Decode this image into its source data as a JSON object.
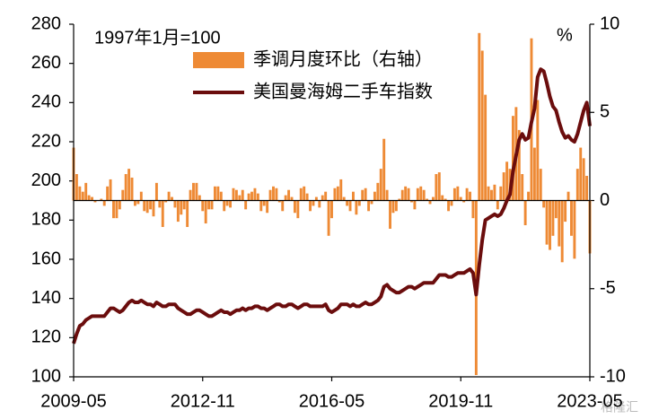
{
  "chart_data": {
    "type": "combo",
    "annotation": "1997年1月=100",
    "y2_unit": "%",
    "watermark": "格隆汇",
    "x": [
      "2009-05",
      "2009-06",
      "2009-07",
      "2009-08",
      "2009-09",
      "2009-10",
      "2009-11",
      "2009-12",
      "2010-01",
      "2010-02",
      "2010-03",
      "2010-04",
      "2010-05",
      "2010-06",
      "2010-07",
      "2010-08",
      "2010-09",
      "2010-10",
      "2010-11",
      "2010-12",
      "2011-01",
      "2011-02",
      "2011-03",
      "2011-04",
      "2011-05",
      "2011-06",
      "2011-07",
      "2011-08",
      "2011-09",
      "2011-10",
      "2011-11",
      "2011-12",
      "2012-01",
      "2012-02",
      "2012-03",
      "2012-04",
      "2012-05",
      "2012-06",
      "2012-07",
      "2012-08",
      "2012-09",
      "2012-10",
      "2012-11",
      "2012-12",
      "2013-01",
      "2013-02",
      "2013-03",
      "2013-04",
      "2013-05",
      "2013-06",
      "2013-07",
      "2013-08",
      "2013-09",
      "2013-10",
      "2013-11",
      "2013-12",
      "2014-01",
      "2014-02",
      "2014-03",
      "2014-04",
      "2014-05",
      "2014-06",
      "2014-07",
      "2014-08",
      "2014-09",
      "2014-10",
      "2014-11",
      "2014-12",
      "2015-01",
      "2015-02",
      "2015-03",
      "2015-04",
      "2015-05",
      "2015-06",
      "2015-07",
      "2015-08",
      "2015-09",
      "2015-10",
      "2015-11",
      "2015-12",
      "2016-01",
      "2016-02",
      "2016-03",
      "2016-04",
      "2016-05",
      "2016-06",
      "2016-07",
      "2016-08",
      "2016-09",
      "2016-10",
      "2016-11",
      "2016-12",
      "2017-01",
      "2017-02",
      "2017-03",
      "2017-04",
      "2017-05",
      "2017-06",
      "2017-07",
      "2017-08",
      "2017-09",
      "2017-10",
      "2017-11",
      "2017-12",
      "2018-01",
      "2018-02",
      "2018-03",
      "2018-04",
      "2018-05",
      "2018-06",
      "2018-07",
      "2018-08",
      "2018-09",
      "2018-10",
      "2018-11",
      "2018-12",
      "2019-01",
      "2019-02",
      "2019-03",
      "2019-04",
      "2019-05",
      "2019-06",
      "2019-07",
      "2019-08",
      "2019-09",
      "2019-10",
      "2019-11",
      "2019-12",
      "2020-01",
      "2020-02",
      "2020-03",
      "2020-04",
      "2020-05",
      "2020-06",
      "2020-07",
      "2020-08",
      "2020-09",
      "2020-10",
      "2020-11",
      "2020-12",
      "2021-01",
      "2021-02",
      "2021-03",
      "2021-04",
      "2021-05",
      "2021-06",
      "2021-07",
      "2021-08",
      "2021-09",
      "2021-10",
      "2021-11",
      "2021-12",
      "2022-01",
      "2022-02",
      "2022-03",
      "2022-04",
      "2022-05",
      "2022-06",
      "2022-07",
      "2022-08",
      "2022-09",
      "2022-10",
      "2022-11",
      "2022-12",
      "2023-01",
      "2023-02",
      "2023-03",
      "2023-04",
      "2023-05"
    ],
    "xticks": [
      "2009-05",
      "2012-11",
      "2016-05",
      "2019-11",
      "2023-05"
    ],
    "ylim": [
      100,
      280
    ],
    "yticks": [
      100,
      120,
      140,
      160,
      180,
      200,
      220,
      240,
      260,
      280
    ],
    "y2lim": [
      -10,
      10
    ],
    "y2ticks": [
      -10,
      -5,
      0,
      5,
      10
    ],
    "series": [
      {
        "name": "季调月度环比（右轴）",
        "type": "bar",
        "axis": "y2",
        "color": "#ee8a35",
        "values": [
          3,
          1.5,
          0.8,
          0.5,
          1,
          0.3,
          0.2,
          -0.1,
          0,
          0.1,
          -0.3,
          0.8,
          1.2,
          -1,
          -1,
          -0.5,
          0.6,
          1.5,
          1.8,
          1.3,
          -0.3,
          -0.2,
          0.5,
          -0.6,
          -0.7,
          -0.5,
          -0.9,
          1,
          -0.4,
          -1.5,
          -0.1,
          0.5,
          0.2,
          -0.4,
          -1.2,
          -0.8,
          -0.5,
          -1.5,
          0.6,
          1,
          1,
          0.3,
          -0.6,
          -1.3,
          -0.5,
          -0.5,
          0.8,
          0.8,
          0.5,
          -0.6,
          -0.3,
          -0.4,
          0.7,
          0.6,
          0.3,
          0.6,
          -0.5,
          0.4,
          0.5,
          0.7,
          0.4,
          -0.6,
          -0.3,
          -0.7,
          0.6,
          0.8,
          0.7,
          -0.1,
          -0.6,
          0.3,
          0.6,
          0.2,
          -0.7,
          -1,
          0.7,
          0.8,
          0.4,
          -0.6,
          -0.3,
          0.2,
          -0.4,
          0.3,
          0.5,
          -2,
          -1,
          0.7,
          0.8,
          1.2,
          0.2,
          -0.3,
          -0.6,
          0.5,
          -0.8,
          -0.3,
          0.6,
          0.7,
          -0.6,
          -0.2,
          0.5,
          1,
          1.8,
          3.5,
          0.6,
          -1.6,
          -0.7,
          -0.6,
          0.1,
          0.6,
          0.8,
          0.7,
          -0.1,
          -0.5,
          0.7,
          0.8,
          0.6,
          0.1,
          -0.2,
          0.2,
          1.5,
          1.6,
          0.3,
          0.1,
          -0.6,
          -0.3,
          0.7,
          0.8,
          0.2,
          -0.1,
          0.7,
          0.5,
          -1,
          -9.9,
          9.5,
          8.5,
          6,
          0.8,
          0.6,
          0.9,
          -0.5,
          0.8,
          1.6,
          2.2,
          1.8,
          4.8,
          5.3,
          4,
          1.5,
          -1.4,
          0.5,
          9.2,
          3,
          5.7,
          1.8,
          -0.4,
          -2.5,
          -2.8,
          -2,
          -1,
          -2.6,
          -3.5,
          -1.2,
          0.5,
          -2,
          -3.3,
          1.8,
          3,
          2.4,
          1.4,
          -3
        ]
      },
      {
        "name": "美国曼海姆二手车指数",
        "type": "line",
        "axis": "y",
        "color": "#6b0d0d",
        "values": [
          117,
          122,
          126,
          127,
          129,
          130,
          131,
          131,
          131,
          131,
          131,
          133,
          135,
          135,
          134,
          133,
          134,
          136,
          138,
          139,
          138,
          138,
          139,
          138,
          137,
          137,
          136,
          138,
          137,
          136,
          136,
          137,
          137,
          137,
          135,
          134,
          133,
          132,
          132,
          133,
          134,
          134,
          133,
          132,
          131,
          131,
          132,
          133,
          134,
          133,
          133,
          132,
          133,
          134,
          134,
          135,
          134,
          135,
          135,
          136,
          136,
          135,
          135,
          134,
          135,
          136,
          137,
          137,
          136,
          136,
          137,
          137,
          136,
          135,
          136,
          137,
          137,
          136,
          136,
          136,
          136,
          136,
          137,
          134,
          133,
          134,
          135,
          137,
          137,
          137,
          136,
          137,
          136,
          136,
          137,
          138,
          137,
          137,
          138,
          139,
          141,
          146,
          147,
          145,
          144,
          143,
          143,
          144,
          145,
          146,
          146,
          145,
          146,
          147,
          148,
          148,
          148,
          148,
          150,
          152,
          152,
          152,
          151,
          151,
          152,
          153,
          153,
          153,
          154,
          155,
          153,
          142,
          157,
          170,
          180,
          181,
          182,
          183,
          182,
          183,
          186,
          190,
          193,
          205,
          213,
          221,
          224,
          221,
          222,
          230,
          237,
          253,
          257,
          256,
          250,
          243,
          238,
          236,
          230,
          225,
          222,
          223,
          221,
          220,
          224,
          230,
          236,
          240,
          228
        ]
      }
    ]
  }
}
